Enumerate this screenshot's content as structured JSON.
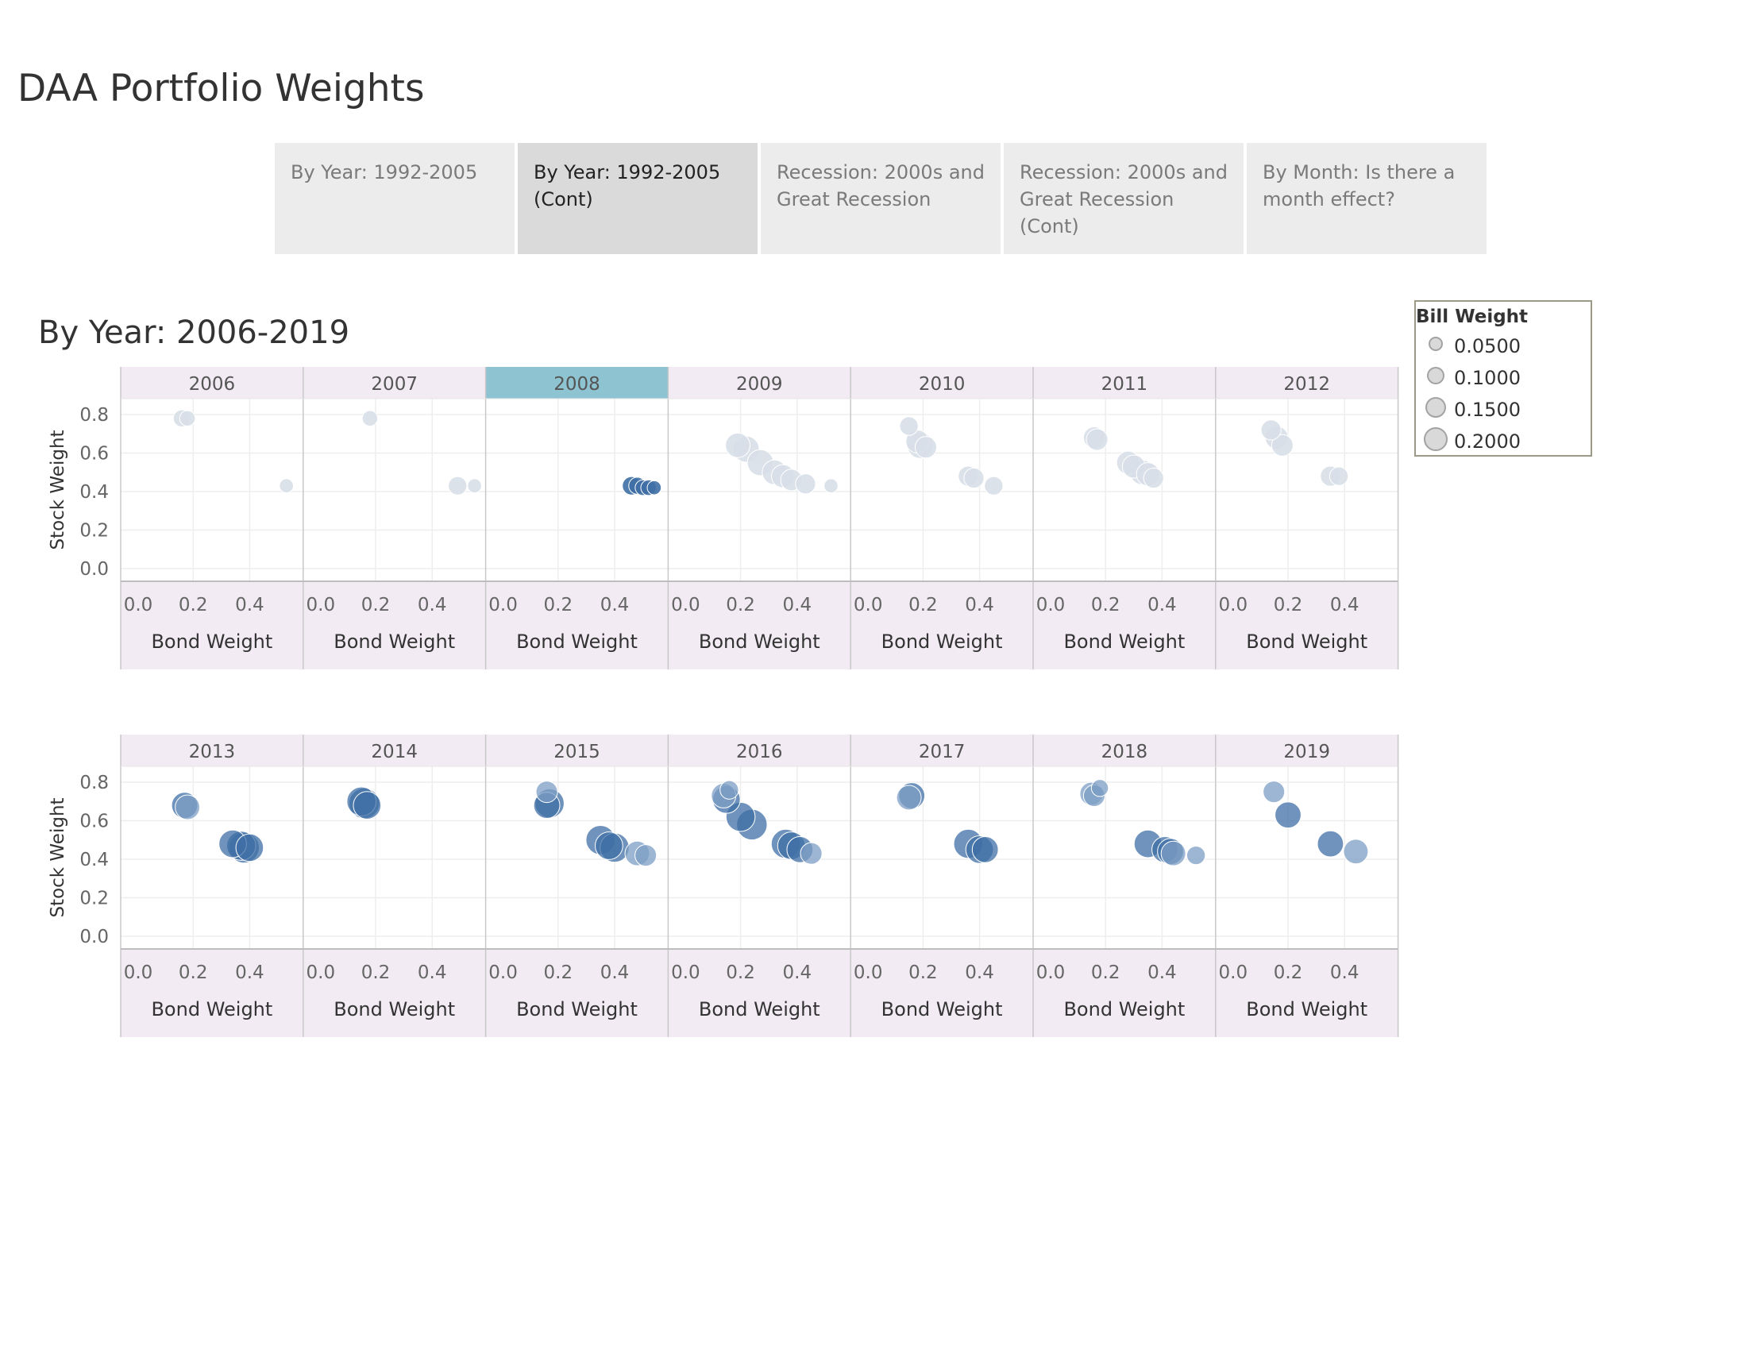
{
  "page": {
    "title": "DAA Portfolio Weights",
    "subtitle": "By Year: 2006-2019"
  },
  "tabs": [
    {
      "label": "By Year: 1992-2005",
      "active": false
    },
    {
      "label": "By Year: 1992-2005 (Cont)",
      "active": true
    },
    {
      "label": "Recession: 2000s and Great Recession",
      "active": false
    },
    {
      "label": "Recession: 2000s and Great Recession (Cont)",
      "active": false
    },
    {
      "label": "By Month: Is there a month effect?",
      "active": false
    }
  ],
  "legend": {
    "title": "Bill Weight",
    "items": [
      {
        "label": "0.0500",
        "value": 0.05
      },
      {
        "label": "0.1000",
        "value": 0.1
      },
      {
        "label": "0.1500",
        "value": 0.15
      },
      {
        "label": "0.2000",
        "value": 0.2
      }
    ]
  },
  "colors": {
    "highlight_header": "#8ec3d1",
    "header_bg": "#f2ebf3",
    "dim_mark": "#d8dfe8",
    "mark_solid": "#3f6fa6",
    "mark_light": "#7c9dc4"
  },
  "chart_data": {
    "type": "scatter",
    "xlabel": "Bond Weight",
    "ylabel": "Stock Weight",
    "size_field": "Bill Weight",
    "xlim": [
      0.0,
      0.55
    ],
    "ylim": [
      0.0,
      0.85
    ],
    "xticks": [
      "0.0",
      "0.2",
      "0.4"
    ],
    "yticks": [
      "0.0",
      "0.2",
      "0.4",
      "0.6",
      "0.8"
    ],
    "highlighted_year": "2008",
    "rows": [
      [
        {
          "year": "2006",
          "points": [
            {
              "x": 0.16,
              "y": 0.78,
              "b": 0.06
            },
            {
              "x": 0.18,
              "y": 0.78,
              "b": 0.05
            },
            {
              "x": 0.53,
              "y": 0.43,
              "b": 0.04
            }
          ]
        },
        {
          "year": "2007",
          "points": [
            {
              "x": 0.18,
              "y": 0.78,
              "b": 0.05
            },
            {
              "x": 0.49,
              "y": 0.43,
              "b": 0.07
            },
            {
              "x": 0.55,
              "y": 0.43,
              "b": 0.04
            }
          ]
        },
        {
          "year": "2008",
          "points": [
            {
              "x": 0.46,
              "y": 0.43,
              "b": 0.07
            },
            {
              "x": 0.48,
              "y": 0.43,
              "b": 0.06
            },
            {
              "x": 0.5,
              "y": 0.42,
              "b": 0.05
            },
            {
              "x": 0.52,
              "y": 0.42,
              "b": 0.05
            },
            {
              "x": 0.54,
              "y": 0.42,
              "b": 0.04
            }
          ]
        },
        {
          "year": "2009",
          "points": [
            {
              "x": 0.19,
              "y": 0.64,
              "b": 0.11
            },
            {
              "x": 0.22,
              "y": 0.62,
              "b": 0.12
            },
            {
              "x": 0.27,
              "y": 0.55,
              "b": 0.12
            },
            {
              "x": 0.32,
              "y": 0.5,
              "b": 0.11
            },
            {
              "x": 0.35,
              "y": 0.48,
              "b": 0.1
            },
            {
              "x": 0.38,
              "y": 0.46,
              "b": 0.09
            },
            {
              "x": 0.43,
              "y": 0.44,
              "b": 0.08
            },
            {
              "x": 0.52,
              "y": 0.43,
              "b": 0.04
            }
          ]
        },
        {
          "year": "2010",
          "points": [
            {
              "x": 0.15,
              "y": 0.74,
              "b": 0.07
            },
            {
              "x": 0.18,
              "y": 0.66,
              "b": 0.1
            },
            {
              "x": 0.19,
              "y": 0.64,
              "b": 0.12
            },
            {
              "x": 0.21,
              "y": 0.63,
              "b": 0.09
            },
            {
              "x": 0.36,
              "y": 0.48,
              "b": 0.08
            },
            {
              "x": 0.38,
              "y": 0.47,
              "b": 0.08
            },
            {
              "x": 0.45,
              "y": 0.43,
              "b": 0.07
            }
          ]
        },
        {
          "year": "2011",
          "points": [
            {
              "x": 0.16,
              "y": 0.68,
              "b": 0.09
            },
            {
              "x": 0.17,
              "y": 0.67,
              "b": 0.09
            },
            {
              "x": 0.28,
              "y": 0.55,
              "b": 0.1
            },
            {
              "x": 0.3,
              "y": 0.53,
              "b": 0.1
            },
            {
              "x": 0.33,
              "y": 0.5,
              "b": 0.11
            },
            {
              "x": 0.35,
              "y": 0.49,
              "b": 0.1
            },
            {
              "x": 0.37,
              "y": 0.47,
              "b": 0.08
            }
          ]
        },
        {
          "year": "2012",
          "points": [
            {
              "x": 0.14,
              "y": 0.72,
              "b": 0.08
            },
            {
              "x": 0.16,
              "y": 0.68,
              "b": 0.1
            },
            {
              "x": 0.18,
              "y": 0.64,
              "b": 0.09
            },
            {
              "x": 0.35,
              "y": 0.48,
              "b": 0.08
            },
            {
              "x": 0.38,
              "y": 0.48,
              "b": 0.07
            }
          ]
        }
      ],
      [
        {
          "year": "2013",
          "points": [
            {
              "x": 0.17,
              "y": 0.68,
              "b": 0.12
            },
            {
              "x": 0.18,
              "y": 0.67,
              "b": 0.11
            },
            {
              "x": 0.34,
              "y": 0.48,
              "b": 0.13
            },
            {
              "x": 0.37,
              "y": 0.47,
              "b": 0.14
            },
            {
              "x": 0.38,
              "y": 0.46,
              "b": 0.15
            },
            {
              "x": 0.4,
              "y": 0.46,
              "b": 0.13
            }
          ]
        },
        {
          "year": "2014",
          "points": [
            {
              "x": 0.15,
              "y": 0.7,
              "b": 0.14
            },
            {
              "x": 0.16,
              "y": 0.69,
              "b": 0.15
            },
            {
              "x": 0.17,
              "y": 0.68,
              "b": 0.13
            }
          ]
        },
        {
          "year": "2015",
          "points": [
            {
              "x": 0.16,
              "y": 0.75,
              "b": 0.09
            },
            {
              "x": 0.17,
              "y": 0.69,
              "b": 0.14
            },
            {
              "x": 0.16,
              "y": 0.68,
              "b": 0.12
            },
            {
              "x": 0.35,
              "y": 0.5,
              "b": 0.14
            },
            {
              "x": 0.38,
              "y": 0.47,
              "b": 0.13
            },
            {
              "x": 0.4,
              "y": 0.46,
              "b": 0.14
            },
            {
              "x": 0.48,
              "y": 0.43,
              "b": 0.11
            },
            {
              "x": 0.51,
              "y": 0.42,
              "b": 0.09
            }
          ]
        },
        {
          "year": "2016",
          "points": [
            {
              "x": 0.16,
              "y": 0.76,
              "b": 0.07
            },
            {
              "x": 0.14,
              "y": 0.73,
              "b": 0.11
            },
            {
              "x": 0.15,
              "y": 0.71,
              "b": 0.13
            },
            {
              "x": 0.2,
              "y": 0.62,
              "b": 0.14
            },
            {
              "x": 0.24,
              "y": 0.58,
              "b": 0.15
            },
            {
              "x": 0.36,
              "y": 0.48,
              "b": 0.14
            },
            {
              "x": 0.38,
              "y": 0.47,
              "b": 0.13
            },
            {
              "x": 0.41,
              "y": 0.45,
              "b": 0.12
            },
            {
              "x": 0.45,
              "y": 0.43,
              "b": 0.09
            }
          ]
        },
        {
          "year": "2017",
          "points": [
            {
              "x": 0.16,
              "y": 0.73,
              "b": 0.12
            },
            {
              "x": 0.15,
              "y": 0.72,
              "b": 0.11
            },
            {
              "x": 0.36,
              "y": 0.48,
              "b": 0.14
            },
            {
              "x": 0.4,
              "y": 0.45,
              "b": 0.13
            },
            {
              "x": 0.42,
              "y": 0.45,
              "b": 0.12
            }
          ]
        },
        {
          "year": "2018",
          "points": [
            {
              "x": 0.18,
              "y": 0.77,
              "b": 0.06
            },
            {
              "x": 0.15,
              "y": 0.74,
              "b": 0.1
            },
            {
              "x": 0.16,
              "y": 0.73,
              "b": 0.09
            },
            {
              "x": 0.35,
              "y": 0.48,
              "b": 0.13
            },
            {
              "x": 0.41,
              "y": 0.45,
              "b": 0.12
            },
            {
              "x": 0.43,
              "y": 0.44,
              "b": 0.12
            },
            {
              "x": 0.44,
              "y": 0.43,
              "b": 0.11
            },
            {
              "x": 0.52,
              "y": 0.42,
              "b": 0.07
            }
          ]
        },
        {
          "year": "2019",
          "points": [
            {
              "x": 0.15,
              "y": 0.75,
              "b": 0.09
            },
            {
              "x": 0.2,
              "y": 0.63,
              "b": 0.12
            },
            {
              "x": 0.35,
              "y": 0.48,
              "b": 0.12
            },
            {
              "x": 0.44,
              "y": 0.44,
              "b": 0.11
            }
          ]
        }
      ]
    ]
  }
}
